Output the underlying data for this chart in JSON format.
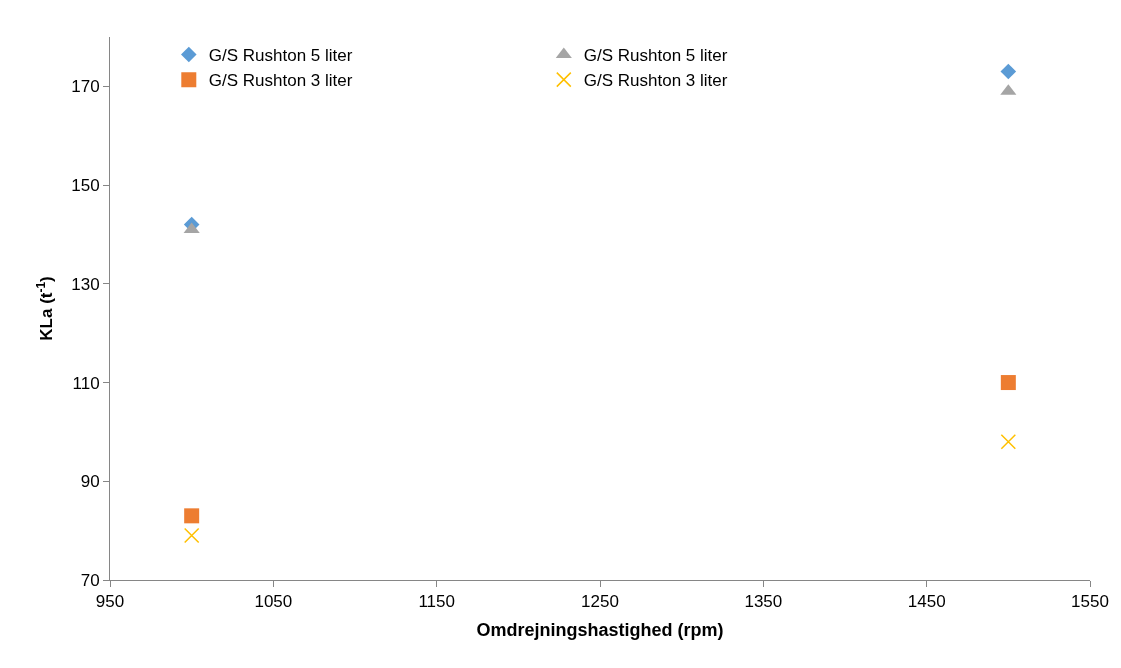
{
  "chart_data": {
    "type": "scatter",
    "xlabel": "Omdrejningshastighed (rpm)",
    "ylabel": "KLa (t$^{-1}$)",
    "x": [
      1000,
      1500
    ],
    "series": [
      {
        "name": "G/S Rushton 5 liter",
        "color": "#5b9bd5",
        "marker": "diamond",
        "values": [
          142,
          173
        ]
      },
      {
        "name": "G/S Rushton 5 liter",
        "color": "#a5a5a5",
        "marker": "triangle",
        "values": [
          141,
          169
        ]
      },
      {
        "name": "G/S Rushton 3 liter",
        "color": "#ed7d31",
        "marker": "square",
        "values": [
          83,
          110
        ]
      },
      {
        "name": "G/S Rushton 3 liter",
        "color": "#ffc000",
        "marker": "cross",
        "values": [
          79,
          98
        ]
      }
    ],
    "xlim": [
      950,
      1550
    ],
    "xticks": [
      950,
      1050,
      1150,
      1250,
      1350,
      1450,
      1550
    ],
    "ylim": [
      70,
      180
    ],
    "yticks": [
      70,
      90,
      110,
      130,
      150,
      170
    ],
    "legend": "top"
  }
}
